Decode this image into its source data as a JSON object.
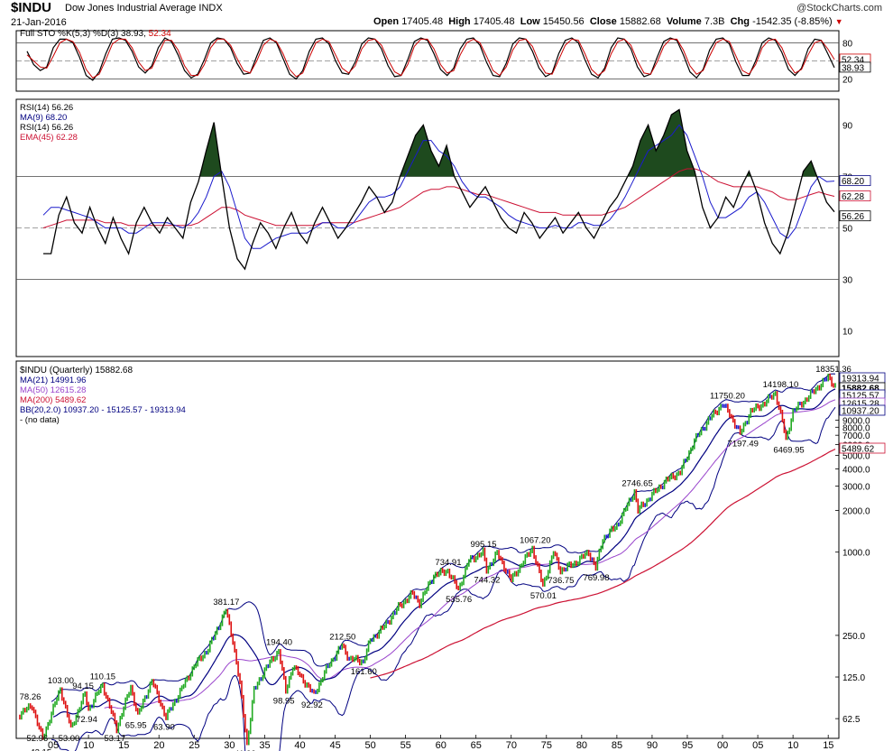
{
  "header": {
    "symbol": "$INDU",
    "name": "Dow Jones Industrial Average INDX",
    "date": "21-Jan-2016",
    "brand": "@StockCharts.com",
    "open_label": "Open",
    "open": "17405.48",
    "high_label": "High",
    "high": "17405.48",
    "low_label": "Low",
    "low": "15450.56",
    "close_label": "Close",
    "close": "15882.68",
    "volume_label": "Volume",
    "volume": "7.3B",
    "chg_label": "Chg",
    "chg": "-1542.35 (-8.85%)"
  },
  "colors": {
    "price_up": "#22aa22",
    "price_down": "#dd1111",
    "price_neutral": "#1a1acc",
    "ma21": "#000080",
    "ma50": "#9944cc",
    "ma200": "#cc1133",
    "bb": "#000080",
    "sto_k": "#000000",
    "sto_d": "#cc0000",
    "rsi": "#000000",
    "rsi_ma": "#1a1acc",
    "rsi_ema": "#cc1133",
    "rsi_fill": "#1e4a1e"
  },
  "chart_data": [
    {
      "type": "line",
      "panel": "stochastic",
      "legend": "Full STO %K(5,3) %D(3) 38.93,",
      "legend_d": "52.34",
      "ylim": [
        0,
        100
      ],
      "levels": [
        "80",
        "20"
      ],
      "last_values": [
        "52.34",
        "38.93"
      ],
      "series": [
        {
          "name": "%K",
          "values": [
            66,
            44,
            34,
            40,
            72,
            86,
            86,
            80,
            56,
            26,
            18,
            32,
            62,
            86,
            88,
            84,
            66,
            40,
            30,
            42,
            72,
            88,
            82,
            60,
            34,
            22,
            28,
            52,
            80,
            88,
            86,
            72,
            46,
            28,
            30,
            58,
            84,
            88,
            80,
            54,
            28,
            20,
            34,
            66,
            86,
            88,
            78,
            50,
            30,
            28,
            48,
            78,
            88,
            86,
            70,
            42,
            24,
            26,
            52,
            82,
            88,
            84,
            62,
            36,
            26,
            38,
            70,
            86,
            88,
            76,
            48,
            26,
            24,
            46,
            78,
            88,
            86,
            66,
            38,
            24,
            30,
            62,
            84,
            88,
            80,
            52,
            28,
            22,
            38,
            72,
            88,
            86,
            70,
            40,
            24,
            28,
            56,
            82,
            88,
            84,
            60,
            32,
            22,
            36,
            68,
            86,
            88,
            78,
            48,
            26,
            26,
            50,
            80,
            88,
            84,
            64,
            36,
            26,
            38,
            70,
            86,
            84,
            62,
            38.93
          ]
        },
        {
          "name": "%D",
          "values": [
            60,
            50,
            40,
            38,
            58,
            80,
            86,
            82,
            64,
            36,
            22,
            28,
            52,
            78,
            86,
            86,
            72,
            48,
            34,
            38,
            62,
            84,
            84,
            68,
            42,
            26,
            26,
            44,
            72,
            86,
            86,
            76,
            54,
            34,
            30,
            50,
            76,
            86,
            82,
            62,
            36,
            24,
            30,
            56,
            80,
            86,
            82,
            60,
            38,
            30,
            42,
            70,
            84,
            86,
            76,
            52,
            32,
            26,
            44,
            74,
            86,
            86,
            70,
            44,
            30,
            34,
            60,
            80,
            86,
            80,
            58,
            34,
            26,
            40,
            68,
            84,
            86,
            74,
            48,
            30,
            28,
            52,
            76,
            86,
            84,
            62,
            36,
            26,
            34,
            62,
            82,
            86,
            76,
            50,
            30,
            28,
            48,
            74,
            86,
            86,
            68,
            42,
            28,
            34,
            58,
            80,
            86,
            82,
            58,
            34,
            28,
            44,
            72,
            84,
            86,
            72,
            46,
            30,
            36,
            60,
            80,
            84,
            70,
            52.34
          ]
        }
      ]
    },
    {
      "type": "line",
      "panel": "rsi",
      "legends": [
        "RSI(14) 56.26",
        "MA(9) 68.20",
        "RSI(14) 56.26",
        "EMA(45) 62.28"
      ],
      "ylim": [
        0,
        100
      ],
      "levels": [
        "90",
        "70",
        "50",
        "30",
        "10"
      ],
      "last_values": [
        "68.20",
        "62.28",
        "56.26"
      ],
      "series": [
        {
          "name": "RSI(14)",
          "values": [
            40,
            40,
            55,
            62,
            52,
            48,
            58,
            50,
            44,
            54,
            46,
            40,
            52,
            58,
            52,
            48,
            54,
            50,
            46,
            60,
            68,
            80,
            91,
            70,
            50,
            38,
            34,
            44,
            52,
            48,
            42,
            50,
            56,
            48,
            44,
            52,
            58,
            52,
            46,
            50,
            55,
            60,
            66,
            62,
            56,
            60,
            70,
            78,
            86,
            90,
            80,
            74,
            82,
            70,
            64,
            58,
            62,
            66,
            60,
            54,
            50,
            48,
            56,
            52,
            46,
            50,
            54,
            48,
            52,
            56,
            50,
            46,
            52,
            58,
            62,
            68,
            74,
            84,
            90,
            80,
            86,
            94,
            96,
            80,
            72,
            58,
            50,
            54,
            62,
            58,
            66,
            72,
            64,
            52,
            44,
            40,
            48,
            60,
            72,
            76,
            68,
            60,
            56.26
          ]
        },
        {
          "name": "MA(9)",
          "values": [
            55,
            58,
            58,
            57,
            56,
            55,
            54,
            52,
            50,
            50,
            50,
            48,
            48,
            50,
            52,
            52,
            52,
            51,
            50,
            52,
            56,
            62,
            70,
            72,
            66,
            56,
            46,
            42,
            42,
            44,
            46,
            47,
            48,
            48,
            48,
            50,
            52,
            52,
            50,
            50,
            52,
            56,
            60,
            62,
            62,
            63,
            66,
            72,
            78,
            84,
            84,
            80,
            78,
            74,
            68,
            64,
            62,
            62,
            60,
            58,
            55,
            53,
            52,
            51,
            50,
            50,
            51,
            50,
            50,
            52,
            52,
            51,
            51,
            53,
            57,
            62,
            68,
            74,
            80,
            82,
            84,
            86,
            90,
            86,
            78,
            70,
            60,
            54,
            54,
            56,
            58,
            62,
            64,
            60,
            54,
            48,
            46,
            50,
            58,
            66,
            70,
            68,
            68.2
          ]
        },
        {
          "name": "EMA(45)",
          "values": [
            50,
            51,
            52,
            53,
            53,
            53,
            53,
            53,
            52,
            52,
            52,
            51,
            51,
            51,
            51,
            51,
            51,
            51,
            51,
            51,
            52,
            54,
            56,
            58,
            58,
            57,
            55,
            54,
            53,
            52,
            51,
            51,
            51,
            51,
            51,
            51,
            52,
            52,
            52,
            52,
            52,
            53,
            54,
            55,
            56,
            57,
            58,
            60,
            62,
            64,
            65,
            65,
            66,
            66,
            65,
            64,
            63,
            63,
            62,
            61,
            60,
            59,
            58,
            57,
            56,
            56,
            56,
            55,
            55,
            55,
            55,
            55,
            55,
            56,
            57,
            58,
            60,
            62,
            64,
            66,
            68,
            70,
            72,
            73,
            73,
            72,
            70,
            68,
            67,
            66,
            66,
            66,
            66,
            65,
            64,
            62,
            61,
            61,
            62,
            63,
            64,
            63,
            62.28
          ]
        }
      ]
    },
    {
      "type": "line",
      "panel": "price",
      "scale": "log",
      "legends": [
        "$INDU (Quarterly) 15882.68",
        "MA(21) 14991.96",
        "MA(50) 12615.28",
        "MA(200) 5489.62",
        "BB(20,2.0) 10937.20 - 15125.57 - 19313.94",
        "- (no data)"
      ],
      "ylim": [
        45,
        22000
      ],
      "y_tick_labels": [
        "9000.0",
        "8000.0",
        "7000.0",
        "6000.0",
        "5000.0",
        "4000.0",
        "3000.0",
        "2000.0",
        "1000.0",
        "250.0",
        "125.0",
        "62.5"
      ],
      "x_tick_labels": [
        "05",
        "10",
        "15",
        "20",
        "25",
        "30",
        "35",
        "40",
        "45",
        "50",
        "55",
        "60",
        "65",
        "70",
        "75",
        "80",
        "85",
        "90",
        "95",
        "00",
        "05",
        "10",
        "15"
      ],
      "x_year_start": 1900,
      "x_year_end": 2016,
      "last_values": [
        "19313.94",
        "15882.68",
        "15125.57",
        "12615.28",
        "10937.20",
        "5489.62"
      ],
      "annotations": [
        {
          "label": "78.26",
          "year": 1902,
          "value": 78.26
        },
        {
          "label": "52.96",
          "year": 1903,
          "value": 52.96
        },
        {
          "label": "42.15",
          "year": 1903.5,
          "value": 42.15
        },
        {
          "label": "103.00",
          "year": 1906,
          "value": 103.0
        },
        {
          "label": "53.00",
          "year": 1907.5,
          "value": 53.0
        },
        {
          "label": "94.15",
          "year": 1909.5,
          "value": 94.15
        },
        {
          "label": "72.94",
          "year": 1910,
          "value": 72.94
        },
        {
          "label": "110.15",
          "year": 1912,
          "value": 110.15
        },
        {
          "label": "53.17",
          "year": 1914,
          "value": 53.17
        },
        {
          "label": "65.95",
          "year": 1917,
          "value": 65.95
        },
        {
          "label": "63.90",
          "year": 1921,
          "value": 63.9
        },
        {
          "label": "381.17",
          "year": 1929.5,
          "value": 381.17
        },
        {
          "label": "41.22",
          "year": 1932.5,
          "value": 41.22
        },
        {
          "label": "194.40",
          "year": 1937,
          "value": 194.4
        },
        {
          "label": "98.95",
          "year": 1938,
          "value": 98.95
        },
        {
          "label": "92.92",
          "year": 1942,
          "value": 92.92
        },
        {
          "label": "212.50",
          "year": 1946,
          "value": 212.5
        },
        {
          "label": "161.60",
          "year": 1949,
          "value": 161.6
        },
        {
          "label": "734.91",
          "year": 1961,
          "value": 734.91
        },
        {
          "label": "535.76",
          "year": 1962.5,
          "value": 535.76
        },
        {
          "label": "995.15",
          "year": 1966,
          "value": 995.15
        },
        {
          "label": "744.32",
          "year": 1966.5,
          "value": 744.32
        },
        {
          "label": "1067.20",
          "year": 1973,
          "value": 1067.2
        },
        {
          "label": "570.01",
          "year": 1974.5,
          "value": 570.01
        },
        {
          "label": "736.75",
          "year": 1977,
          "value": 736.75
        },
        {
          "label": "769.98",
          "year": 1982,
          "value": 769.98
        },
        {
          "label": "2746.65",
          "year": 1987.5,
          "value": 2746.65
        },
        {
          "label": "11750.20",
          "year": 2000,
          "value": 11750.2
        },
        {
          "label": "7197.49",
          "year": 2002.5,
          "value": 7197.49
        },
        {
          "label": "14198.10",
          "year": 2007.5,
          "value": 14198.1
        },
        {
          "label": "6469.95",
          "year": 2009,
          "value": 6469.95
        },
        {
          "label": "18351.36",
          "year": 2015,
          "value": 18351.36
        }
      ],
      "price_keypoints": [
        [
          1900,
          66
        ],
        [
          1902,
          78
        ],
        [
          1903,
          53
        ],
        [
          1903.5,
          45
        ],
        [
          1906,
          103
        ],
        [
          1907.5,
          53
        ],
        [
          1909.5,
          94
        ],
        [
          1910,
          73
        ],
        [
          1912,
          110
        ],
        [
          1914,
          53
        ],
        [
          1916,
          106
        ],
        [
          1917,
          66
        ],
        [
          1919,
          118
        ],
        [
          1921,
          64
        ],
        [
          1923,
          98
        ],
        [
          1925,
          150
        ],
        [
          1927,
          200
        ],
        [
          1929.5,
          381
        ],
        [
          1930.5,
          230
        ],
        [
          1931.5,
          110
        ],
        [
          1932.5,
          41
        ],
        [
          1933.5,
          100
        ],
        [
          1935,
          140
        ],
        [
          1937,
          194
        ],
        [
          1938,
          99
        ],
        [
          1939,
          150
        ],
        [
          1941,
          110
        ],
        [
          1942,
          93
        ],
        [
          1944,
          150
        ],
        [
          1946,
          212
        ],
        [
          1947,
          170
        ],
        [
          1949,
          162
        ],
        [
          1950,
          230
        ],
        [
          1952,
          290
        ],
        [
          1954,
          400
        ],
        [
          1956,
          500
        ],
        [
          1957,
          430
        ],
        [
          1959,
          680
        ],
        [
          1961,
          735
        ],
        [
          1962.5,
          536
        ],
        [
          1964,
          870
        ],
        [
          1966,
          995
        ],
        [
          1966.5,
          744
        ],
        [
          1968,
          980
        ],
        [
          1970,
          630
        ],
        [
          1973,
          1067
        ],
        [
          1974.5,
          570
        ],
        [
          1976,
          1000
        ],
        [
          1977,
          737
        ],
        [
          1979,
          830
        ],
        [
          1981,
          1000
        ],
        [
          1982,
          770
        ],
        [
          1983,
          1250
        ],
        [
          1985,
          1550
        ],
        [
          1987.5,
          2747
        ],
        [
          1988,
          2000
        ],
        [
          1990,
          2600
        ],
        [
          1992,
          3300
        ],
        [
          1994,
          3800
        ],
        [
          1996,
          6400
        ],
        [
          1998,
          9000
        ],
        [
          2000,
          11750
        ],
        [
          2001,
          10000
        ],
        [
          2002.5,
          7197
        ],
        [
          2004,
          10400
        ],
        [
          2006,
          12000
        ],
        [
          2007.5,
          14198
        ],
        [
          2008.5,
          8800
        ],
        [
          2009,
          6470
        ],
        [
          2010,
          10400
        ],
        [
          2012,
          13000
        ],
        [
          2014,
          16500
        ],
        [
          2015,
          18351
        ],
        [
          2016,
          15883
        ]
      ]
    }
  ]
}
